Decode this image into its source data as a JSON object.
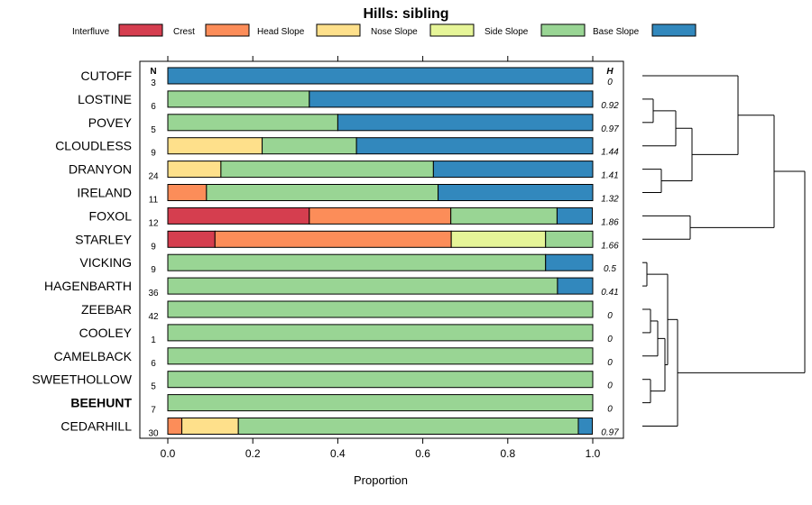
{
  "chart_data": {
    "type": "bar",
    "stacked": true,
    "orientation": "horizontal",
    "title": "Hills: sibling",
    "xlabel": "Proportion",
    "xlim": [
      0,
      1
    ],
    "x_ticks": [
      "0.0",
      "0.2",
      "0.4",
      "0.6",
      "0.8",
      "1.0"
    ],
    "n_header": "N",
    "h_header": "H",
    "legend": [
      {
        "name": "Interfluve",
        "color": "#d53e4f"
      },
      {
        "name": "Crest",
        "color": "#fc8d59"
      },
      {
        "name": "Head Slope",
        "color": "#fee08b"
      },
      {
        "name": "Nose Slope",
        "color": "#e6f598"
      },
      {
        "name": "Side Slope",
        "color": "#99d594"
      },
      {
        "name": "Base Slope",
        "color": "#3288bd"
      }
    ],
    "rows": [
      {
        "label": "CUTOFF",
        "n": "3",
        "h": "0",
        "bold": false,
        "values": [
          0,
          0,
          0,
          0,
          0,
          1.0
        ]
      },
      {
        "label": "LOSTINE",
        "n": "6",
        "h": "0.92",
        "bold": false,
        "values": [
          0,
          0,
          0,
          0,
          0.333,
          0.667
        ]
      },
      {
        "label": "POVEY",
        "n": "5",
        "h": "0.97",
        "bold": false,
        "values": [
          0,
          0,
          0,
          0,
          0.4,
          0.6
        ]
      },
      {
        "label": "CLOUDLESS",
        "n": "9",
        "h": "1.44",
        "bold": false,
        "values": [
          0,
          0,
          0.222,
          0,
          0.222,
          0.556
        ]
      },
      {
        "label": "DRANYON",
        "n": "24",
        "h": "1.41",
        "bold": false,
        "values": [
          0,
          0,
          0.125,
          0,
          0.5,
          0.375
        ]
      },
      {
        "label": "IRELAND",
        "n": "11",
        "h": "1.32",
        "bold": false,
        "values": [
          0,
          0.091,
          0,
          0,
          0.545,
          0.364
        ]
      },
      {
        "label": "FOXOL",
        "n": "12",
        "h": "1.86",
        "bold": false,
        "values": [
          0.333,
          0.333,
          0,
          0,
          0.25,
          0.083
        ]
      },
      {
        "label": "STARLEY",
        "n": "9",
        "h": "1.66",
        "bold": false,
        "values": [
          0.111,
          0.556,
          0,
          0.222,
          0.111,
          0
        ]
      },
      {
        "label": "VICKING",
        "n": "9",
        "h": "0.5",
        "bold": false,
        "values": [
          0,
          0,
          0,
          0,
          0.889,
          0.111
        ]
      },
      {
        "label": "HAGENBARTH",
        "n": "36",
        "h": "0.41",
        "bold": false,
        "values": [
          0,
          0,
          0,
          0,
          0.917,
          0.083
        ]
      },
      {
        "label": "ZEEBAR",
        "n": "42",
        "h": "0",
        "bold": false,
        "values": [
          0,
          0,
          0,
          0,
          1.0,
          0
        ]
      },
      {
        "label": "COOLEY",
        "n": "1",
        "h": "0",
        "bold": false,
        "values": [
          0,
          0,
          0,
          0,
          1.0,
          0
        ]
      },
      {
        "label": "CAMELBACK",
        "n": "6",
        "h": "0",
        "bold": false,
        "values": [
          0,
          0,
          0,
          0,
          1.0,
          0
        ]
      },
      {
        "label": "SWEETHOLLOW",
        "n": "5",
        "h": "0",
        "bold": false,
        "values": [
          0,
          0,
          0,
          0,
          1.0,
          0
        ]
      },
      {
        "label": "BEEHUNT",
        "n": "7",
        "h": "0",
        "bold": true,
        "values": [
          0,
          0,
          0,
          0,
          1.0,
          0
        ]
      },
      {
        "label": "CEDARHILL",
        "n": "30",
        "h": "0.97",
        "bold": false,
        "values": [
          0,
          0.033,
          0.133,
          0,
          0.8,
          0.033
        ]
      }
    ],
    "dendrogram": {
      "leaves_order": [
        "CUTOFF",
        "LOSTINE",
        "POVEY",
        "CLOUDLESS",
        "DRANYON",
        "IRELAND",
        "FOXOL",
        "STARLEY",
        "VICKING",
        "HAGENBARTH",
        "ZEEBAR",
        "COOLEY",
        "CAMELBACK",
        "SWEETHOLLOW",
        "BEEHUNT",
        "CEDARHILL"
      ]
    }
  }
}
